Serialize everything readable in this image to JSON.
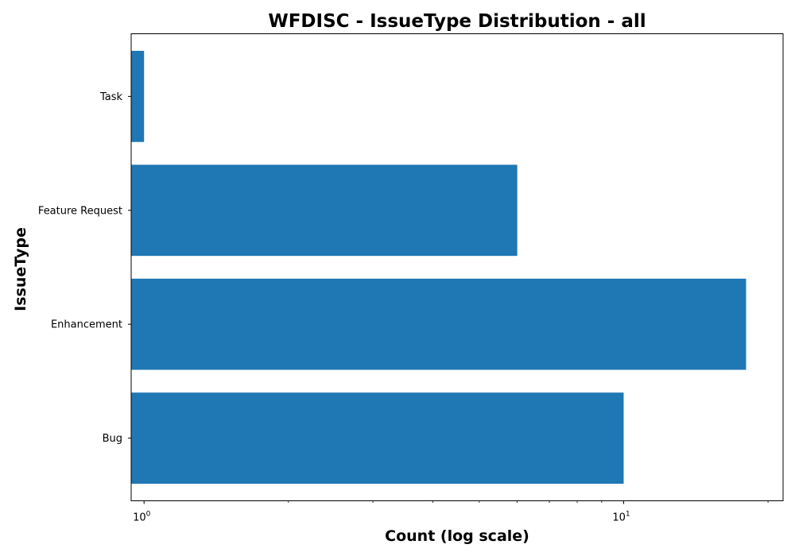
{
  "chart_data": {
    "type": "bar",
    "orientation": "horizontal",
    "title": "WFDISC - IssueType Distribution - all",
    "xlabel": "Count (log scale)",
    "ylabel": "IssueType",
    "xscale": "log",
    "xlim": [
      0.94,
      21.5
    ],
    "categories": [
      "Bug",
      "Enhancement",
      "Feature Request",
      "Task"
    ],
    "values": [
      10,
      18,
      6,
      1
    ],
    "major_ticks": [
      {
        "value": 1,
        "base": "10",
        "exp": "0"
      },
      {
        "value": 10,
        "base": "10",
        "exp": "1"
      }
    ],
    "grid": false,
    "bar_color": "#1f77b4"
  }
}
